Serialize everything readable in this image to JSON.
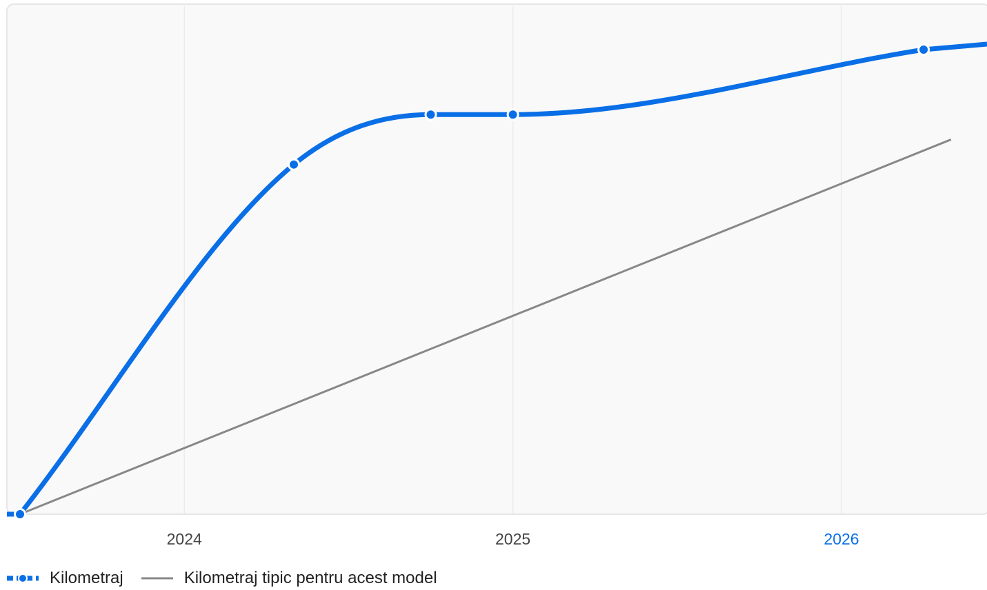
{
  "chart_data": {
    "type": "line",
    "xlabel": "",
    "ylabel": "",
    "x_ticks": [
      "2024",
      "2025",
      "2026"
    ],
    "highlighted_tick": "2026",
    "grid": true,
    "legend_position": "bottom-left",
    "series": [
      {
        "name": "Kilometraj",
        "color": "#0a6fe6",
        "style": "smooth-line-with-markers",
        "points": [
          {
            "x": "2023-07",
            "y": 0
          },
          {
            "x": "2024-05",
            "y": 70
          },
          {
            "x": "2024-10",
            "y": 80
          },
          {
            "x": "2025-01",
            "y": 80
          },
          {
            "x": "2026-04",
            "y": 93
          }
        ]
      },
      {
        "name": "Kilometraj tipic pentru acest model",
        "color": "#888888",
        "style": "straight-line",
        "points": [
          {
            "x": "2023-07",
            "y": 0
          },
          {
            "x": "2026-05",
            "y": 75
          }
        ]
      }
    ]
  },
  "legend": {
    "series_a": "Kilometraj",
    "series_b": "Kilometraj tipic pentru acest model"
  },
  "colors": {
    "accent": "#0a6fe6",
    "typical": "#888888",
    "plot_bg": "#f9f9f9",
    "grid": "#ebebeb",
    "tick_text": "#444444"
  }
}
